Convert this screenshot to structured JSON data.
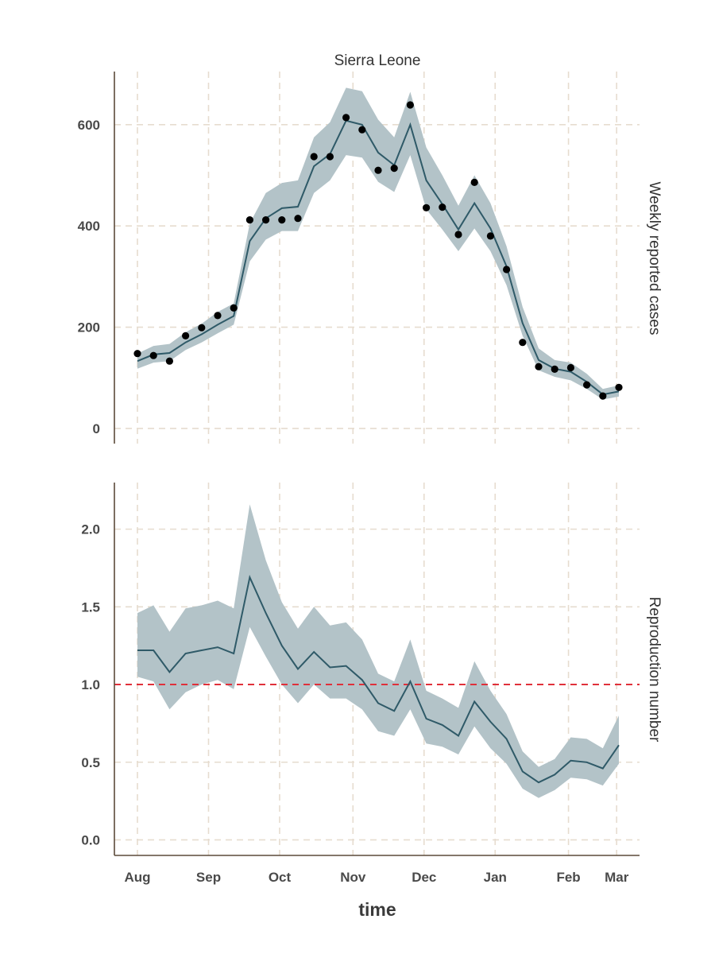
{
  "chart_data": {
    "type": "line",
    "title": "Sierra Leone",
    "xlabel": "time",
    "x_tick_labels": [
      "Aug",
      "Sep",
      "Oct",
      "Nov",
      "Dec",
      "Jan",
      "Feb",
      "Mar"
    ],
    "x_tick_weeks": [
      0,
      4.43,
      8.86,
      13.43,
      17.86,
      22.29,
      26.86,
      29.86
    ],
    "week_index": [
      0,
      1,
      2,
      3,
      4,
      5,
      6,
      7,
      8,
      9,
      10,
      11,
      12,
      13,
      14,
      15,
      16,
      17,
      18,
      19,
      20,
      21,
      22,
      23,
      24,
      25,
      26,
      27,
      28,
      29,
      30
    ],
    "panels": [
      {
        "strip_label": "Weekly reported cases",
        "ylim": [
          -30,
          705
        ],
        "yticks": [
          0,
          200,
          400,
          600
        ],
        "ytick_labels": [
          "0",
          "200",
          "400",
          "600"
        ],
        "observed_cases": [
          148,
          144,
          133,
          183,
          199,
          223,
          238,
          412,
          412,
          412,
          415,
          537,
          537,
          614,
          590,
          510,
          514,
          639,
          436,
          437,
          383,
          486,
          380,
          314,
          170,
          122,
          117,
          120,
          86,
          64,
          81
        ],
        "fitted_mean": [
          133,
          146,
          149,
          170,
          186,
          205,
          222,
          370,
          415,
          435,
          438,
          518,
          542,
          608,
          600,
          545,
          520,
          600,
          490,
          443,
          393,
          445,
          395,
          320,
          208,
          135,
          118,
          112,
          92,
          67,
          73
        ],
        "fitted_lower": [
          118,
          130,
          133,
          155,
          170,
          188,
          205,
          330,
          373,
          390,
          390,
          465,
          490,
          540,
          535,
          487,
          467,
          540,
          433,
          393,
          350,
          395,
          350,
          283,
          183,
          115,
          102,
          95,
          78,
          57,
          63
        ],
        "fitted_upper": [
          148,
          163,
          167,
          190,
          207,
          230,
          247,
          405,
          465,
          485,
          490,
          575,
          605,
          673,
          666,
          610,
          575,
          665,
          555,
          500,
          440,
          500,
          445,
          360,
          240,
          158,
          135,
          130,
          108,
          78,
          85
        ]
      },
      {
        "strip_label": "Reproduction number",
        "ylim": [
          -0.1,
          2.3
        ],
        "yticks": [
          0.0,
          0.5,
          1.0,
          1.5,
          2.0
        ],
        "ytick_labels": [
          "0.0",
          "0.5",
          "1.0",
          "1.5",
          "2.0"
        ],
        "reference_line": 1.0,
        "mean": [
          1.22,
          1.22,
          1.08,
          1.2,
          1.22,
          1.24,
          1.2,
          1.69,
          1.46,
          1.25,
          1.1,
          1.21,
          1.11,
          1.12,
          1.03,
          0.88,
          0.83,
          1.02,
          0.78,
          0.74,
          0.67,
          0.89,
          0.76,
          0.65,
          0.44,
          0.37,
          0.42,
          0.51,
          0.5,
          0.46,
          0.61
        ],
        "lower": [
          1.05,
          1.02,
          0.84,
          0.95,
          1.0,
          1.03,
          0.97,
          1.37,
          1.18,
          1.0,
          0.88,
          1.0,
          0.91,
          0.91,
          0.84,
          0.7,
          0.67,
          0.84,
          0.62,
          0.6,
          0.55,
          0.73,
          0.59,
          0.49,
          0.33,
          0.27,
          0.32,
          0.4,
          0.39,
          0.35,
          0.49
        ],
        "upper": [
          1.46,
          1.51,
          1.34,
          1.49,
          1.51,
          1.54,
          1.49,
          2.16,
          1.8,
          1.53,
          1.36,
          1.5,
          1.38,
          1.4,
          1.29,
          1.07,
          1.02,
          1.29,
          0.96,
          0.91,
          0.85,
          1.15,
          0.96,
          0.81,
          0.57,
          0.47,
          0.52,
          0.66,
          0.65,
          0.59,
          0.8
        ]
      }
    ],
    "colors": {
      "band": "#b3c3c8",
      "line": "#2f5a68",
      "points": "#000000",
      "reference": "#e0303a",
      "grid": "#e6dccf",
      "axis": "#5c4a3a"
    }
  }
}
